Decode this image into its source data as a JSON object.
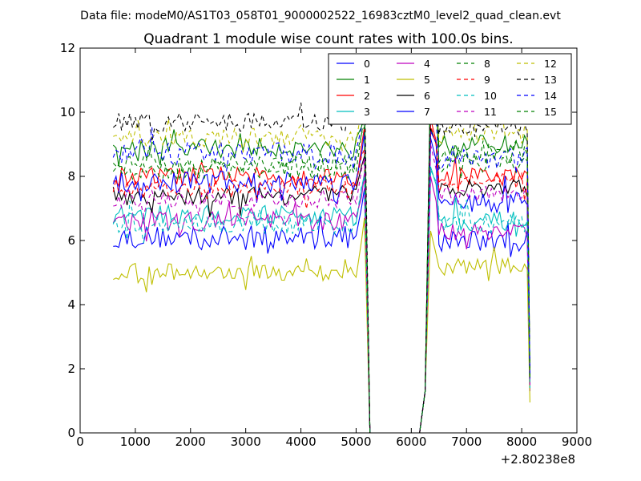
{
  "chart_data": {
    "type": "line",
    "suptitle": "Data file: modeM0/AS1T03_058T01_9000002522_16983cztM0_level2_quad_clean.evt",
    "title": "Quadrant 1 module wise count rates with 100.0s bins.",
    "xlabel": "",
    "ylabel": "",
    "x_offset_label": "+2.80238e8",
    "xlim": [
      0,
      9000
    ],
    "ylim": [
      0,
      12
    ],
    "xticks": [
      0,
      1000,
      2000,
      3000,
      4000,
      5000,
      6000,
      7000,
      8000,
      9000
    ],
    "yticks": [
      0,
      2,
      4,
      6,
      8,
      10,
      12
    ],
    "xtick_labels": [
      "0",
      "1000",
      "2000",
      "3000",
      "4000",
      "5000",
      "6000",
      "7000",
      "8000",
      "9000"
    ],
    "ytick_labels": [
      "0",
      "2",
      "4",
      "6",
      "8",
      "10",
      "12"
    ],
    "legend_location": "top-right",
    "legend_columns": 4,
    "x_segments": [
      [
        600,
        5150
      ],
      [
        5250,
        5350
      ],
      [
        6150,
        6350
      ],
      [
        6450,
        8100
      ]
    ],
    "x_drop_points": [
      5250,
      5350,
      6150,
      6250
    ],
    "x_final": 8150,
    "series": [
      {
        "name": "0",
        "color": "#0000ff",
        "dash": "solid",
        "level": 6.1,
        "jitter": 0.35,
        "peak": 9.2,
        "post": 6.0,
        "final": 1.3
      },
      {
        "name": "1",
        "color": "#008000",
        "dash": "solid",
        "level": 8.9,
        "jitter": 0.3,
        "peak": 11.2,
        "post": 9.0,
        "final": 1.6
      },
      {
        "name": "2",
        "color": "#ff0000",
        "dash": "solid",
        "level": 8.0,
        "jitter": 0.3,
        "peak": 9.8,
        "post": 8.0,
        "final": 1.5
      },
      {
        "name": "3",
        "color": "#00bfbf",
        "dash": "solid",
        "level": 6.8,
        "jitter": 0.3,
        "peak": 8.3,
        "post": 6.6,
        "final": 1.4
      },
      {
        "name": "4",
        "color": "#bf00bf",
        "dash": "solid",
        "level": 6.6,
        "jitter": 0.3,
        "peak": 8.0,
        "post": 6.3,
        "final": 1.3
      },
      {
        "name": "5",
        "color": "#bfbf00",
        "dash": "solid",
        "level": 5.0,
        "jitter": 0.25,
        "peak": 6.3,
        "post": 5.2,
        "final": 0.95
      },
      {
        "name": "6",
        "color": "#000000",
        "dash": "solid",
        "level": 7.4,
        "jitter": 0.3,
        "peak": 9.5,
        "post": 7.6,
        "final": 1.6
      },
      {
        "name": "7",
        "color": "#0000ff",
        "dash": "solid",
        "level": 7.8,
        "jitter": 0.35,
        "peak": 9.4,
        "post": 7.2,
        "final": 1.5
      },
      {
        "name": "8",
        "color": "#008000",
        "dash": "dashed",
        "level": 8.2,
        "jitter": 0.3,
        "peak": 11.4,
        "post": 8.4,
        "final": 1.7
      },
      {
        "name": "9",
        "color": "#ff0000",
        "dash": "dashed",
        "level": 7.6,
        "jitter": 0.3,
        "peak": 9.6,
        "post": 7.8,
        "final": 1.5
      },
      {
        "name": "10",
        "color": "#00bfbf",
        "dash": "dashed",
        "level": 6.5,
        "jitter": 0.3,
        "peak": 8.2,
        "post": 6.5,
        "final": 1.4
      },
      {
        "name": "11",
        "color": "#bf00bf",
        "dash": "dashed",
        "level": 7.3,
        "jitter": 0.3,
        "peak": 9.0,
        "post": 7.4,
        "final": 1.5
      },
      {
        "name": "12",
        "color": "#bfbf00",
        "dash": "dashed",
        "level": 9.2,
        "jitter": 0.3,
        "peak": 10.9,
        "post": 9.3,
        "final": 1.8
      },
      {
        "name": "13",
        "color": "#000000",
        "dash": "dashed",
        "level": 9.7,
        "jitter": 0.3,
        "peak": 11.0,
        "post": 9.5,
        "final": 1.8
      },
      {
        "name": "14",
        "color": "#0000ff",
        "dash": "dashed",
        "level": 8.7,
        "jitter": 0.35,
        "peak": 10.5,
        "post": 8.6,
        "final": 1.7
      },
      {
        "name": "15",
        "color": "#008000",
        "dash": "dashed",
        "level": 8.4,
        "jitter": 0.3,
        "peak": 11.0,
        "post": 8.7,
        "final": 1.7
      }
    ]
  }
}
